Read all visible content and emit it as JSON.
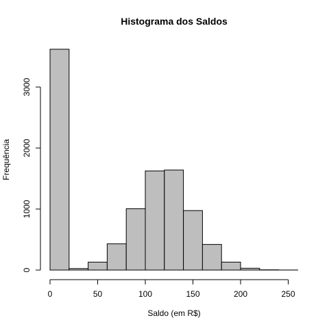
{
  "chart_data": {
    "type": "histogram",
    "title": "Histograma dos Saldos",
    "xlabel": "Saldo (em R$)",
    "ylabel": "Frequência",
    "bin_width": 20,
    "bins": [
      {
        "start": 0,
        "end": 20,
        "count": 3620
      },
      {
        "start": 20,
        "end": 40,
        "count": 25
      },
      {
        "start": 40,
        "end": 60,
        "count": 130
      },
      {
        "start": 60,
        "end": 80,
        "count": 430
      },
      {
        "start": 80,
        "end": 100,
        "count": 1005
      },
      {
        "start": 100,
        "end": 120,
        "count": 1625
      },
      {
        "start": 120,
        "end": 140,
        "count": 1640
      },
      {
        "start": 140,
        "end": 160,
        "count": 975
      },
      {
        "start": 160,
        "end": 180,
        "count": 420
      },
      {
        "start": 180,
        "end": 200,
        "count": 130
      },
      {
        "start": 200,
        "end": 220,
        "count": 30
      },
      {
        "start": 220,
        "end": 240,
        "count": 4
      },
      {
        "start": 240,
        "end": 260,
        "count": 1
      }
    ],
    "xlim": [
      0,
      260
    ],
    "ylim": [
      0,
      3620
    ],
    "x_ticks": [
      "0",
      "50",
      "100",
      "150",
      "200",
      "250"
    ],
    "y_ticks": [
      "0",
      "1000",
      "2000",
      "3000"
    ],
    "bar_color": "#bebebe",
    "grid": false,
    "legend": false
  }
}
